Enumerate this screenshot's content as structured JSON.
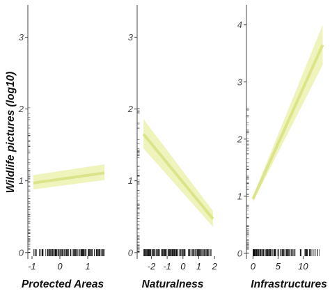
{
  "chart_data": [
    {
      "type": "line",
      "xlabel": "Protected Areas",
      "ylabel": "Wildlife pictures (log10)",
      "xlim": [
        -1.15,
        1.75
      ],
      "ylim": [
        -0.05,
        3.45
      ],
      "xticks": [
        -1,
        0,
        1
      ],
      "yticks": [
        0,
        1,
        2,
        3
      ],
      "series": [
        {
          "x": [
            -0.95,
            1.6
          ],
          "y": [
            0.97,
            1.11
          ],
          "ci_lower": [
            0.88,
            1.01
          ],
          "ci_upper": [
            1.08,
            1.23
          ]
        }
      ],
      "grid": false
    },
    {
      "type": "line",
      "xlabel": "Naturalness",
      "ylabel": "",
      "xlim": [
        -2.9,
        2.3
      ],
      "ylim": [
        -0.05,
        3.45
      ],
      "xticks": [
        -2,
        -1,
        0,
        1,
        2
      ],
      "yticks": [
        0,
        1,
        2,
        3
      ],
      "series": [
        {
          "x": [
            -2.5,
            1.9
          ],
          "y": [
            1.65,
            0.47
          ],
          "ci_lower": [
            1.45,
            0.36
          ],
          "ci_upper": [
            1.86,
            0.58
          ]
        }
      ],
      "grid": false
    },
    {
      "type": "line",
      "xlabel": "Infrastructures",
      "ylabel": "",
      "xlim": [
        -1.3,
        14.8
      ],
      "ylim": [
        -0.05,
        4.35
      ],
      "xticks": [
        0,
        5,
        10
      ],
      "yticks": [
        0,
        1,
        2,
        3,
        4
      ],
      "series": [
        {
          "x": [
            0,
            13.9
          ],
          "y": [
            0.95,
            3.65
          ],
          "ci_lower": [
            0.9,
            3.3
          ],
          "ci_upper": [
            1.0,
            4.0
          ]
        }
      ],
      "grid": false
    }
  ],
  "colors": {
    "line": "#dce48a",
    "band": "#eef2b8",
    "axis": "#444444",
    "rug": "#111111"
  }
}
